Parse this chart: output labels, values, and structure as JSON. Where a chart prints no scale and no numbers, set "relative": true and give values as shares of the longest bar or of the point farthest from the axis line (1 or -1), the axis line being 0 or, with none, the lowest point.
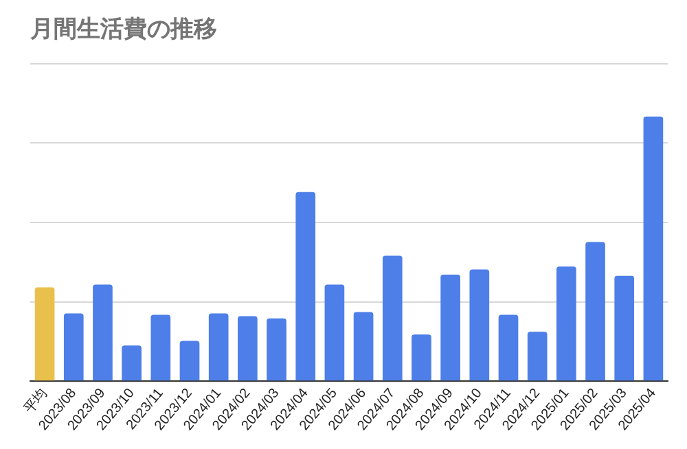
{
  "chart_data": {
    "type": "bar",
    "title": "月間生活費の推移",
    "relative": true,
    "grid": "y",
    "legend": false,
    "categories": [
      "平均",
      "2023/08",
      "2023/09",
      "2023/10",
      "2023/11",
      "2023/12",
      "2024/01",
      "2024/02",
      "2024/03",
      "2024/04",
      "2024/05",
      "2024/06",
      "2024/07",
      "2024/08",
      "2024/09",
      "2024/10",
      "2024/11",
      "2024/12",
      "2025/01",
      "2025/02",
      "2025/03",
      "2025/04"
    ],
    "values": [
      0.355,
      0.256,
      0.365,
      0.135,
      0.251,
      0.152,
      0.256,
      0.246,
      0.237,
      0.715,
      0.365,
      0.261,
      0.474,
      0.176,
      0.403,
      0.422,
      0.251,
      0.187,
      0.433,
      0.526,
      0.398,
      1
    ],
    "colors": [
      "#e9c04c",
      "#4e7fe8",
      "#4e7fe8",
      "#4e7fe8",
      "#4e7fe8",
      "#4e7fe8",
      "#4e7fe8",
      "#4e7fe8",
      "#4e7fe8",
      "#4e7fe8",
      "#4e7fe8",
      "#4e7fe8",
      "#4e7fe8",
      "#4e7fe8",
      "#4e7fe8",
      "#4e7fe8",
      "#4e7fe8",
      "#4e7fe8",
      "#4e7fe8",
      "#4e7fe8",
      "#4e7fe8",
      "#4e7fe8"
    ]
  }
}
